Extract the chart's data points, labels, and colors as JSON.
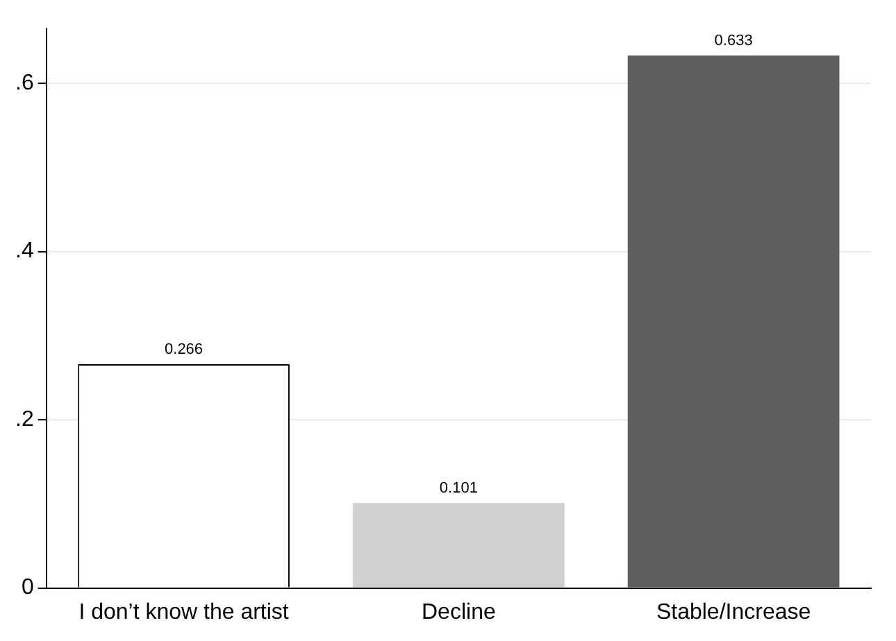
{
  "chart_data": {
    "type": "bar",
    "categories": [
      "I don’t know the artist",
      "Decline",
      "Stable/Increase"
    ],
    "values": [
      0.266,
      0.101,
      0.633
    ],
    "colors": [
      "#ffffff",
      "#d0d0d0",
      "#5e5e5e"
    ],
    "ylim": [
      0,
      0.665
    ],
    "yticks": [
      {
        "value": 0,
        "label": "0"
      },
      {
        "value": 0.2,
        "label": ".2"
      },
      {
        "value": 0.4,
        "label": ".4"
      },
      {
        "value": 0.6,
        "label": ".6"
      }
    ],
    "grid": "y",
    "data_labels": true
  }
}
